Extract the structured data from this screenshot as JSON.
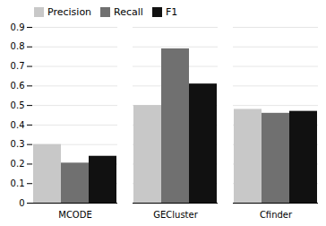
{
  "chart_data": {
    "type": "bar",
    "categories": [
      "MCODE",
      "GECluster",
      "Cfinder"
    ],
    "series": [
      {
        "name": "Precision",
        "color": "#c8c8c8",
        "values": [
          0.3,
          0.5,
          0.48
        ]
      },
      {
        "name": "Recall",
        "color": "#707070",
        "values": [
          0.205,
          0.79,
          0.46
        ]
      },
      {
        "name": "F1",
        "color": "#111111",
        "values": [
          0.24,
          0.61,
          0.47
        ]
      }
    ],
    "ylim": [
      0,
      0.9
    ],
    "yticks": [
      0,
      0.1,
      0.2,
      0.3,
      0.4,
      0.5,
      0.6,
      0.7,
      0.8,
      0.9
    ],
    "grid": true,
    "legend": "upper left"
  }
}
